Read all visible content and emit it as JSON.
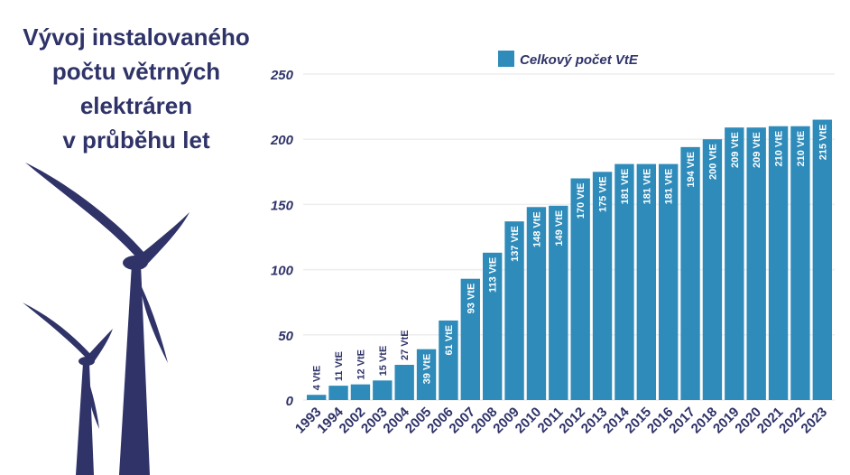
{
  "title_lines": [
    "Vývoj instalovaného",
    "počtu větrných",
    "elektráren",
    "v průběhu let"
  ],
  "colors": {
    "bar": "#2e8bba",
    "text": "#2f3368",
    "grid": "#eeeeee",
    "turbine": "#2f3368"
  },
  "icons": [
    "wind-turbine-large",
    "wind-turbine-small"
  ],
  "chart_data": {
    "type": "bar",
    "title": "",
    "xlabel": "",
    "ylabel": "",
    "ylim": [
      0,
      250
    ],
    "yticks": [
      0,
      50,
      100,
      150,
      200,
      250
    ],
    "grid": true,
    "legend": "top-center",
    "categories": [
      "1993",
      "1994",
      "2002",
      "2003",
      "2004",
      "2005",
      "2006",
      "2007",
      "2008",
      "2009",
      "2010",
      "2011",
      "2012",
      "2013",
      "2014",
      "2015",
      "2016",
      "2017",
      "2018",
      "2019",
      "2020",
      "2021",
      "2022",
      "2023"
    ],
    "series": [
      {
        "name": "Celkový počet VtE",
        "values": [
          4,
          11,
          12,
          15,
          27,
          39,
          61,
          93,
          113,
          137,
          148,
          149,
          170,
          175,
          181,
          181,
          181,
          194,
          200,
          209,
          209,
          210,
          210,
          215
        ]
      }
    ],
    "data_label_suffix": " VtE"
  }
}
